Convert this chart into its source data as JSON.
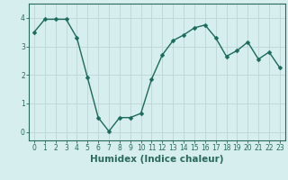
{
  "x": [
    0,
    1,
    2,
    3,
    4,
    5,
    6,
    7,
    8,
    9,
    10,
    11,
    12,
    13,
    14,
    15,
    16,
    17,
    18,
    19,
    20,
    21,
    22,
    23
  ],
  "y": [
    3.5,
    3.95,
    3.95,
    3.95,
    3.3,
    1.9,
    0.5,
    0.02,
    0.5,
    0.5,
    0.65,
    1.85,
    2.7,
    3.2,
    3.4,
    3.65,
    3.75,
    3.3,
    2.65,
    2.85,
    3.15,
    2.55,
    2.8,
    2.25
  ],
  "xlabel": "Humidex (Indice chaleur)",
  "ylim": [
    -0.3,
    4.5
  ],
  "xlim": [
    -0.5,
    23.5
  ],
  "yticks": [
    0,
    1,
    2,
    3,
    4
  ],
  "xticks": [
    0,
    1,
    2,
    3,
    4,
    5,
    6,
    7,
    8,
    9,
    10,
    11,
    12,
    13,
    14,
    15,
    16,
    17,
    18,
    19,
    20,
    21,
    22,
    23
  ],
  "line_color": "#1a6b5a",
  "marker_color": "#1a6b5a",
  "bg_color": "#d6eeee",
  "grid_color": "#c0d8d8",
  "axis_color": "#2a6a5a",
  "tick_label_fontsize": 5.5,
  "xlabel_fontsize": 7.5,
  "line_width": 1.0,
  "marker_size": 2.5
}
